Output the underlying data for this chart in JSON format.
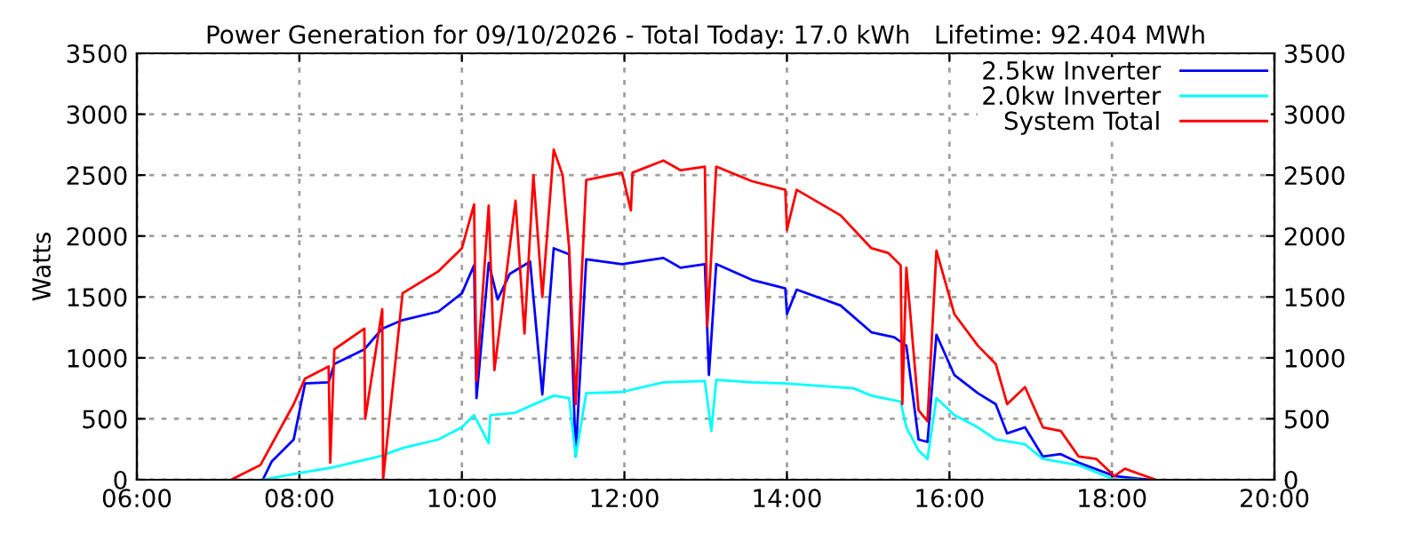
{
  "chart_data": {
    "type": "line",
    "title": "Power Generation for 09/10/2026 - Total Today: 17.0 kWh   Lifetime: 92.404 MWh",
    "ylabel": "Watts",
    "xlim": [
      6,
      20
    ],
    "xticks": [
      {
        "value": 6,
        "label": "06:00"
      },
      {
        "value": 8,
        "label": "08:00"
      },
      {
        "value": 10,
        "label": "10:00"
      },
      {
        "value": 12,
        "label": "12:00"
      },
      {
        "value": 14,
        "label": "14:00"
      },
      {
        "value": 16,
        "label": "16:00"
      },
      {
        "value": 18,
        "label": "18:00"
      },
      {
        "value": 20,
        "label": "20:00"
      }
    ],
    "ylim": [
      0,
      3500
    ],
    "yticks": [
      0,
      500,
      1000,
      1500,
      2000,
      2500,
      3000,
      3500
    ],
    "y2lim": [
      0,
      3500
    ],
    "y2ticks": [
      0,
      500,
      1000,
      1500,
      2000,
      2500,
      3000,
      3500
    ],
    "grid": true,
    "legend": "top right",
    "line_style": "solid",
    "marker": "none",
    "series": [
      {
        "name": "2.5kw Inverter",
        "color": "#0000ff",
        "x": [
          7.55,
          7.66,
          7.93,
          8.07,
          8.36,
          8.43,
          8.8,
          9.02,
          9.27,
          9.71,
          10.0,
          10.15,
          10.18,
          10.33,
          10.44,
          10.59,
          10.84,
          10.99,
          11.13,
          11.32,
          11.4,
          11.53,
          11.97,
          12.48,
          12.69,
          12.99,
          13.04,
          13.13,
          13.57,
          13.98,
          14.0,
          14.12,
          14.66,
          15.04,
          15.32,
          15.47,
          15.62,
          15.73,
          15.84,
          16.06,
          16.35,
          16.57,
          16.71,
          16.93,
          17.15,
          17.37,
          17.59,
          18.03,
          18.46
        ],
        "values": [
          0,
          150,
          330,
          790,
          800,
          950,
          1070,
          1240,
          1310,
          1380,
          1530,
          1760,
          670,
          1780,
          1480,
          1690,
          1790,
          700,
          1900,
          1850,
          190,
          1810,
          1770,
          1820,
          1740,
          1770,
          860,
          1770,
          1640,
          1570,
          1360,
          1560,
          1430,
          1210,
          1170,
          1100,
          330,
          310,
          1190,
          860,
          710,
          620,
          380,
          430,
          190,
          210,
          140,
          30,
          0
        ]
      },
      {
        "name": "2.0kw Inverter",
        "color": "#00ffff",
        "x": [
          7.55,
          7.96,
          8.4,
          8.98,
          9.27,
          9.71,
          10.0,
          10.15,
          10.33,
          10.35,
          10.66,
          11.13,
          11.32,
          11.4,
          11.53,
          11.97,
          12.48,
          12.99,
          13.07,
          13.13,
          13.57,
          13.98,
          14.82,
          15.04,
          15.4,
          15.47,
          15.62,
          15.73,
          15.84,
          16.06,
          16.35,
          16.57,
          16.93,
          17.15,
          17.59,
          18.03,
          18.32
        ],
        "values": [
          0,
          50,
          100,
          190,
          260,
          330,
          430,
          530,
          300,
          530,
          550,
          690,
          670,
          190,
          710,
          720,
          800,
          810,
          400,
          820,
          800,
          790,
          750,
          690,
          640,
          430,
          240,
          170,
          670,
          530,
          430,
          330,
          290,
          170,
          120,
          0,
          0
        ]
      },
      {
        "name": "System Total",
        "color": "#ff0000",
        "x": [
          7.16,
          7.52,
          7.93,
          8.07,
          8.36,
          8.38,
          8.43,
          8.8,
          8.81,
          9.02,
          9.03,
          9.27,
          9.71,
          10.0,
          10.15,
          10.18,
          10.33,
          10.4,
          10.66,
          10.77,
          10.88,
          10.99,
          11.13,
          11.24,
          11.32,
          11.4,
          11.53,
          11.97,
          12.08,
          12.1,
          12.48,
          12.69,
          12.99,
          13.02,
          13.13,
          13.57,
          13.98,
          14.0,
          14.12,
          14.66,
          15.04,
          15.25,
          15.4,
          15.42,
          15.47,
          15.62,
          15.73,
          15.84,
          16.06,
          16.35,
          16.57,
          16.71,
          16.93,
          17.15,
          17.37,
          17.59,
          17.81,
          18.03,
          18.16,
          18.54
        ],
        "values": [
          0,
          120,
          620,
          830,
          930,
          140,
          1070,
          1240,
          500,
          1400,
          0,
          1530,
          1710,
          1900,
          2260,
          810,
          2250,
          900,
          2290,
          1200,
          2500,
          1500,
          2710,
          2500,
          1900,
          620,
          2460,
          2520,
          2210,
          2520,
          2620,
          2540,
          2570,
          1260,
          2570,
          2450,
          2380,
          2050,
          2380,
          2170,
          1900,
          1860,
          1760,
          620,
          1740,
          570,
          480,
          1880,
          1360,
          1100,
          950,
          620,
          760,
          430,
          400,
          190,
          170,
          30,
          90,
          0
        ]
      }
    ]
  }
}
